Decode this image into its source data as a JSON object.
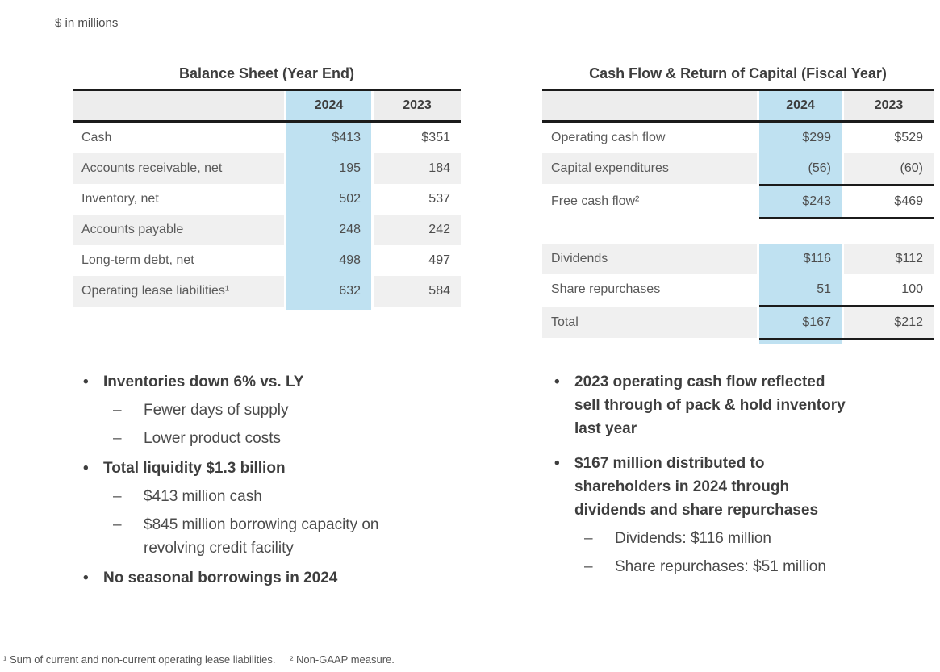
{
  "meta": {
    "units_note": "$ in millions"
  },
  "colors": {
    "highlight_blue": "#bfe1f1",
    "row_gray": "#f0f0f0",
    "header_gray": "#ededed",
    "rule_black": "#1b1b1b"
  },
  "glyphs": {
    "bullet": "•",
    "dash": "–"
  },
  "balance_sheet": {
    "title": "Balance Sheet (Year End)",
    "columns": [
      "2024",
      "2023"
    ],
    "rows": [
      {
        "label": "Cash",
        "y2024": "$413",
        "y2023": "$351"
      },
      {
        "label": "Accounts receivable, net",
        "y2024": "195",
        "y2023": "184"
      },
      {
        "label": "Inventory, net",
        "y2024": "502",
        "y2023": "537"
      },
      {
        "label": "Accounts payable",
        "y2024": "248",
        "y2023": "242"
      },
      {
        "label": "Long-term debt, net",
        "y2024": "498",
        "y2023": "497"
      },
      {
        "label": "Operating lease liabilities¹",
        "y2024": "632",
        "y2023": "584"
      }
    ]
  },
  "cash_flow": {
    "title": "Cash Flow & Return of Capital (Fiscal Year)",
    "columns": [
      "2024",
      "2023"
    ],
    "rows_top": [
      {
        "label": "Operating cash flow",
        "y2024": "$299",
        "y2023": "$529"
      },
      {
        "label": "Capital expenditures",
        "y2024": "(56)",
        "y2023": "(60)"
      },
      {
        "label": "Free cash flow²",
        "y2024": "$243",
        "y2023": "$469"
      }
    ],
    "rows_bottom": [
      {
        "label": "Dividends",
        "y2024": "$116",
        "y2023": "$112"
      },
      {
        "label": "Share repurchases",
        "y2024": "51",
        "y2023": "100"
      },
      {
        "label": "Total",
        "y2024": "$167",
        "y2023": "$212"
      }
    ]
  },
  "left_bullets": {
    "item1": "Inventories down 6% vs. LY",
    "item1_sub1": "Fewer days of supply",
    "item1_sub2": "Lower product costs",
    "item2": "Total liquidity $1.3 billion",
    "item2_sub1": "$413 million cash",
    "item2_sub2": [
      "$845 million borrowing capacity on",
      "revolving credit facility"
    ],
    "item3": "No seasonal borrowings in 2024"
  },
  "right_bullets": {
    "item1": [
      "2023 operating cash flow reflected",
      "sell through of pack & hold inventory",
      "last year"
    ],
    "item2": [
      "$167 million distributed to",
      "shareholders in 2024 through",
      "dividends and share repurchases"
    ],
    "item2_sub1": "Dividends: $116 million",
    "item2_sub2": "Share repurchases: $51 million"
  },
  "footnotes": {
    "fn1": "¹ Sum of current and non-current operating lease liabilities.",
    "fn2": "² Non-GAAP measure."
  }
}
